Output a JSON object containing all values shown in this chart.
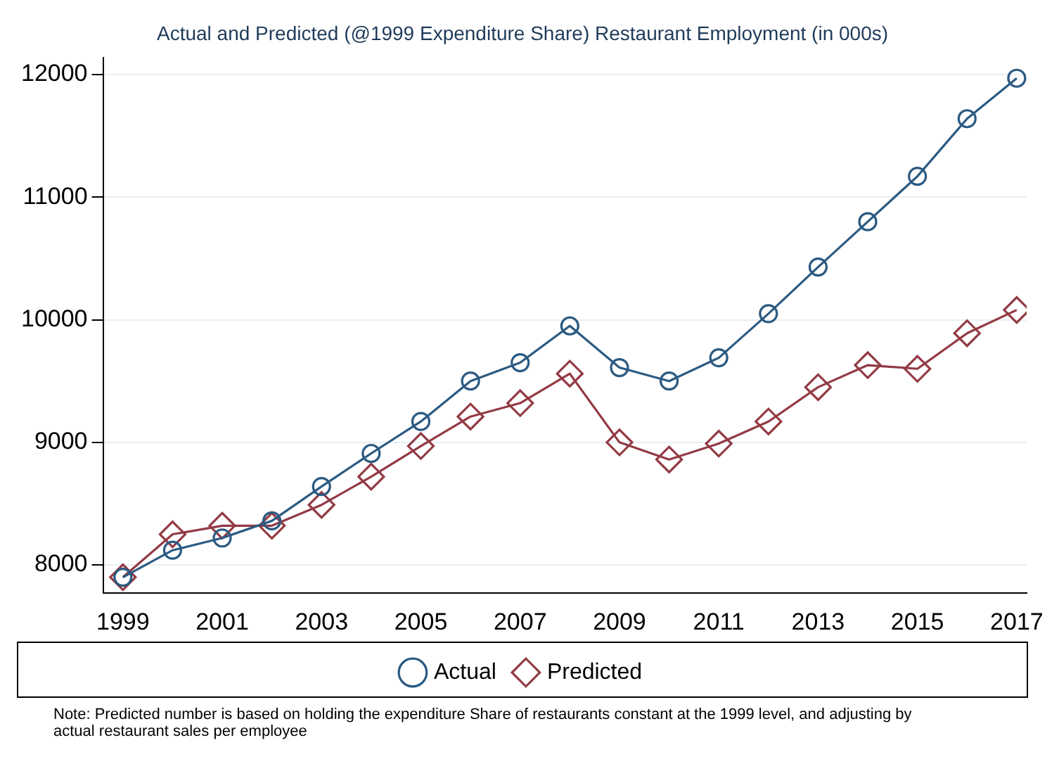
{
  "chart_data": {
    "type": "line",
    "title": "Actual and Predicted (@1999 Expenditure Share) Restaurant Employment (in 000s)",
    "x": [
      1999,
      2000,
      2001,
      2002,
      2003,
      2004,
      2005,
      2006,
      2007,
      2008,
      2009,
      2010,
      2011,
      2012,
      2013,
      2014,
      2015,
      2016,
      2017
    ],
    "series": [
      {
        "name": "Actual",
        "color": "#2b5a82",
        "marker": "circle",
        "values": [
          7900,
          8120,
          8220,
          8360,
          8640,
          8910,
          9170,
          9500,
          9650,
          9950,
          9610,
          9500,
          9690,
          10050,
          10430,
          10800,
          11170,
          11640,
          11970
        ]
      },
      {
        "name": "Predicted",
        "color": "#933a45",
        "marker": "diamond",
        "values": [
          7900,
          8250,
          8320,
          8320,
          8490,
          8720,
          8970,
          9210,
          9320,
          9560,
          9000,
          8860,
          8990,
          9170,
          9450,
          9630,
          9600,
          9890,
          10080
        ]
      }
    ],
    "xlim": [
      1998.6,
      2017.2
    ],
    "xticks": [
      1999,
      2001,
      2003,
      2005,
      2007,
      2009,
      2011,
      2013,
      2015,
      2017
    ],
    "ylim": [
      7770,
      12140
    ],
    "yticks": [
      8000,
      9000,
      10000,
      11000,
      12000
    ],
    "grid": "y",
    "legend": "bottom",
    "line_style": "solid",
    "annotations": [
      "Note: Predicted number is based on holding the expenditure Share of restaurants constant at the 1999 level, and adjusting by actual restaurant sales per employee"
    ]
  }
}
